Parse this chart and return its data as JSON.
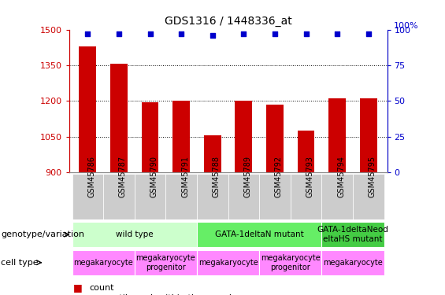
{
  "title": "GDS1316 / 1448336_at",
  "samples": [
    "GSM45786",
    "GSM45787",
    "GSM45790",
    "GSM45791",
    "GSM45788",
    "GSM45789",
    "GSM45792",
    "GSM45793",
    "GSM45794",
    "GSM45795"
  ],
  "bar_values": [
    1430,
    1355,
    1195,
    1200,
    1055,
    1200,
    1185,
    1075,
    1210,
    1210
  ],
  "percentile_values": [
    97,
    97,
    97,
    97,
    96,
    97,
    97,
    97,
    97,
    97
  ],
  "bar_color": "#cc0000",
  "dot_color": "#0000cc",
  "ylim_left": [
    900,
    1500
  ],
  "ylim_right": [
    0,
    100
  ],
  "yticks_left": [
    900,
    1050,
    1200,
    1350,
    1500
  ],
  "yticks_right": [
    0,
    25,
    50,
    75,
    100
  ],
  "grid_values": [
    1050,
    1200,
    1350
  ],
  "genotype_groups": [
    {
      "label": "wild type",
      "start": 0,
      "end": 4,
      "color": "#ccffcc"
    },
    {
      "label": "GATA-1deltaN mutant",
      "start": 4,
      "end": 8,
      "color": "#66ee66"
    },
    {
      "label": "GATA-1deltaNeod\neltaHS mutant",
      "start": 8,
      "end": 10,
      "color": "#44cc44"
    }
  ],
  "cell_type_groups": [
    {
      "label": "megakaryocyte",
      "start": 0,
      "end": 2,
      "color": "#ff88ff"
    },
    {
      "label": "megakaryocyte\nprogenitor",
      "start": 2,
      "end": 4,
      "color": "#ff88ff"
    },
    {
      "label": "megakaryocyte",
      "start": 4,
      "end": 6,
      "color": "#ff88ff"
    },
    {
      "label": "megakaryocyte\nprogenitor",
      "start": 6,
      "end": 8,
      "color": "#ff88ff"
    },
    {
      "label": "megakaryocyte",
      "start": 8,
      "end": 10,
      "color": "#ff88ff"
    }
  ],
  "left_label_color": "#cc0000",
  "right_label_color": "#0000cc",
  "background_color": "#ffffff",
  "annotation_row1_label": "genotype/variation",
  "annotation_row2_label": "cell type",
  "tick_bg_color": "#cccccc"
}
